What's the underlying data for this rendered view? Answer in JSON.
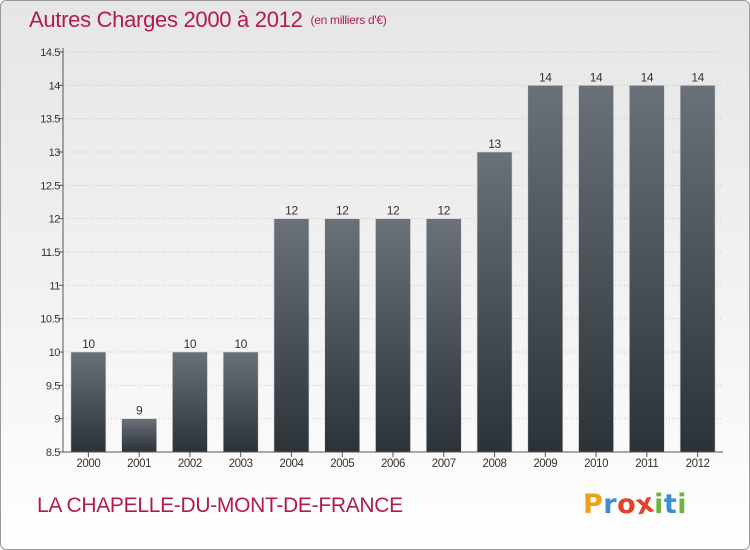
{
  "header": {
    "title": "Autres Charges 2000 à 2012",
    "unit": "(en milliers d'€)"
  },
  "footer": {
    "commune": "LA CHAPELLE-DU-MONT-DE-FRANCE",
    "logo_letters": [
      "P",
      "r",
      "o",
      "x",
      "i",
      "t",
      "i"
    ],
    "logo_colors": [
      "#e8a21b",
      "#3a8fd0",
      "#e0432c",
      "#e0432c",
      "#6db33f",
      "#3a8fd0",
      "#6db33f"
    ]
  },
  "colors": {
    "title": "#b01d4a",
    "bar_top": "#6a7178",
    "bar_bottom": "#2b3238",
    "axis": "#555555",
    "grid": "#c8c8c8"
  },
  "chart_data": {
    "type": "bar",
    "categories": [
      "2000",
      "2001",
      "2002",
      "2003",
      "2004",
      "2005",
      "2006",
      "2007",
      "2008",
      "2009",
      "2010",
      "2011",
      "2012"
    ],
    "values": [
      10,
      9,
      10,
      10,
      12,
      12,
      12,
      12,
      13,
      14,
      14,
      14,
      14
    ],
    "data_labels": [
      "10",
      "9",
      "10",
      "10",
      "12",
      "12",
      "12",
      "12",
      "13",
      "14",
      "14",
      "14",
      "14"
    ],
    "ylim": [
      8.5,
      14.5
    ],
    "yticks": [
      8.5,
      9,
      9.5,
      10,
      10.5,
      11,
      11.5,
      12,
      12.5,
      13,
      13.5,
      14,
      14.5
    ],
    "ytick_labels": [
      "8.5",
      "9",
      "9.5",
      "10",
      "10.5",
      "11",
      "11.5",
      "12",
      "12.5",
      "13",
      "13.5",
      "14",
      "14.5"
    ],
    "grid": true,
    "xlabel": "",
    "ylabel": ""
  }
}
